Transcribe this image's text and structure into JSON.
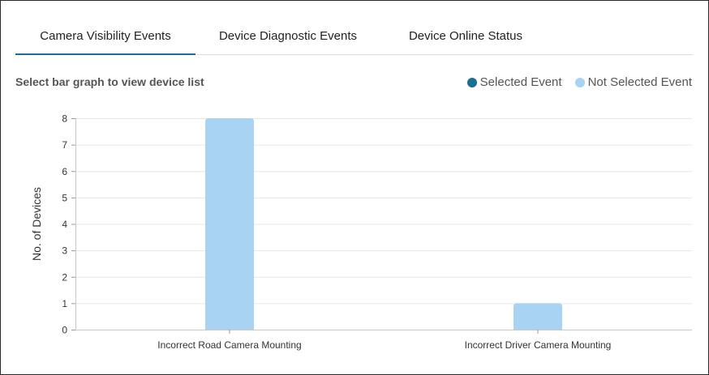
{
  "tabs": [
    {
      "label": "Camera Visibility Events",
      "active": true
    },
    {
      "label": "Device Diagnostic Events",
      "active": false
    },
    {
      "label": "Device Online Status",
      "active": false
    }
  ],
  "subtitle": "Select bar graph to view device list",
  "legend": {
    "selected": {
      "label": "Selected Event",
      "color": "#1d6c96"
    },
    "not_selected": {
      "label": "Not Selected Event",
      "color": "#a9d3f2"
    }
  },
  "chart_data": {
    "type": "bar",
    "categories": [
      "Incorrect Road Camera Mounting",
      "Incorrect Driver Camera Mounting"
    ],
    "values": [
      8,
      1
    ],
    "ylabel": "No. of Devices",
    "ylim": [
      0,
      8
    ],
    "yticks": [
      0,
      1,
      2,
      3,
      4,
      5,
      6,
      7,
      8
    ],
    "grid": true,
    "bar_color": "#a9d3f2",
    "legend_position": "top-right"
  }
}
